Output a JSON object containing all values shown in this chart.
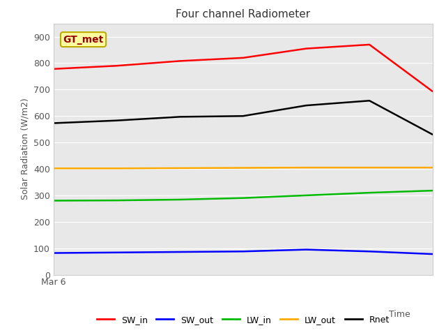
{
  "title": "Four channel Radiometer",
  "xlabel": "Time",
  "ylabel": "Solar Radiation (W/m2)",
  "annotation": "GT_met",
  "ylim": [
    0,
    950
  ],
  "yticks": [
    0,
    100,
    200,
    300,
    400,
    500,
    600,
    700,
    800,
    900
  ],
  "x_label_text": "Mar 6",
  "plot_bg_color": "#e8e8e8",
  "fig_bg_color": "#ffffff",
  "series": {
    "SW_in": {
      "x": [
        0,
        1,
        2,
        3,
        4,
        5,
        6
      ],
      "y": [
        778,
        790,
        808,
        820,
        855,
        870,
        693
      ],
      "color": "#ff0000",
      "linewidth": 1.8
    },
    "SW_out": {
      "x": [
        0,
        1,
        2,
        3,
        4,
        5,
        6
      ],
      "y": [
        82,
        84,
        86,
        88,
        95,
        88,
        78
      ],
      "color": "#0000ff",
      "linewidth": 1.8
    },
    "LW_in": {
      "x": [
        0,
        1,
        2,
        3,
        4,
        5,
        6
      ],
      "y": [
        280,
        281,
        284,
        290,
        300,
        310,
        318
      ],
      "color": "#00bb00",
      "linewidth": 1.8
    },
    "LW_out": {
      "x": [
        0,
        1,
        2,
        3,
        4,
        5,
        6
      ],
      "y": [
        402,
        402,
        403,
        404,
        405,
        405,
        405
      ],
      "color": "#ffaa00",
      "linewidth": 1.8
    },
    "Rnet": {
      "x": [
        0,
        1,
        2,
        3,
        4,
        5,
        6
      ],
      "y": [
        573,
        583,
        597,
        600,
        640,
        658,
        530
      ],
      "color": "#000000",
      "linewidth": 1.8
    }
  },
  "legend_order": [
    "SW_in",
    "SW_out",
    "LW_in",
    "LW_out",
    "Rnet"
  ],
  "annotation_bbox": {
    "boxstyle": "round,pad=0.25",
    "facecolor": "#ffffa0",
    "edgecolor": "#bbaa00",
    "linewidth": 1.5
  },
  "title_fontsize": 11,
  "axis_label_fontsize": 9,
  "tick_fontsize": 9,
  "legend_fontsize": 9
}
